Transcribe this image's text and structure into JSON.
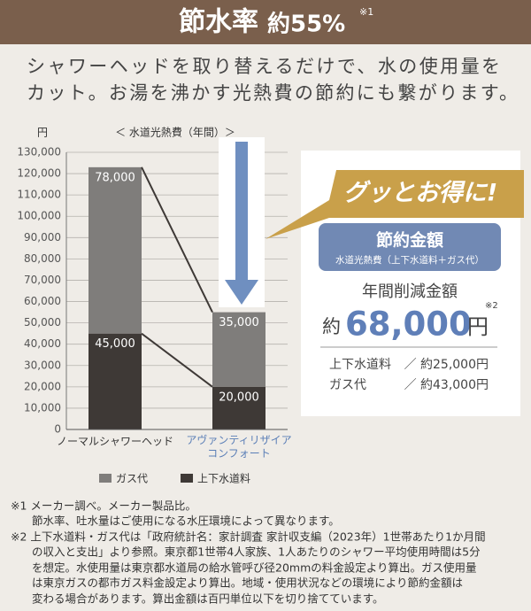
{
  "header": {
    "title": "節水率",
    "rate": "約55%",
    "note": "※1"
  },
  "lead": [
    "シャワーヘッドを取り替えるだけで、水の使用量を",
    "カット。お湯を沸かす光熱費の節約にも繋がります。"
  ],
  "chart_data": {
    "type": "bar",
    "stacked": true,
    "y_unit": "円",
    "subtitle": "＜ 水道光熱費（年間）＞",
    "categories": [
      "ノーマルシャワーヘッド",
      "アヴァンティリザイア\nコンフォート"
    ],
    "series": [
      {
        "name": "上下水道料",
        "color": "#3e3936",
        "values": [
          45000,
          20000
        ],
        "value_labels": [
          "45,000",
          "20,000"
        ]
      },
      {
        "name": "ガス代",
        "color": "#7f7d7b",
        "values": [
          78000,
          35000
        ],
        "value_labels": [
          "78,000",
          "35,000"
        ]
      }
    ],
    "ylim": [
      0,
      130000
    ],
    "yticks": [
      0,
      {
        "value": 10000,
        "label": "10,000"
      },
      {
        "value": 20000,
        "label": "20,000"
      },
      {
        "value": 30000,
        "label": "30,000"
      },
      {
        "value": 40000,
        "label": "40,000"
      },
      {
        "value": 50000,
        "label": "50,000"
      },
      {
        "value": 60000,
        "label": "60,000"
      },
      {
        "value": 70000,
        "label": "70,000"
      },
      {
        "value": 80000,
        "label": "80,000"
      },
      {
        "value": 90000,
        "label": "90,000"
      },
      {
        "value": 100000,
        "label": "100,000"
      },
      {
        "value": 110000,
        "label": "110,000"
      },
      {
        "value": 120000,
        "label": "120,000"
      },
      {
        "value": 130000,
        "label": "130,000"
      }
    ],
    "grid": true
  },
  "savings": {
    "banner": "グッとお得に!",
    "heading": "節約金額",
    "subheading": "水道光熱費（上下水道料＋ガス代）",
    "label": "年間削減金額",
    "prefix": "約",
    "amount": "68,000",
    "unit": "円",
    "note": "※2",
    "breakdown": [
      {
        "label": "上下水道料",
        "value": "／ 約25,000円"
      },
      {
        "label": "ガス代",
        "value": "／ 約43,000円"
      }
    ]
  },
  "footnotes": [
    "※1 メーカー調べ。メーカー製品比。",
    "節水率、吐水量はご使用になる水圧環境によって異なります。",
    "※2 上下水道料・ガス代は「政府統計名：家計調査 家計収支編（2023年）1世帯あたり1か月間",
    "の収入と支出」より参照。東京都1世帯4人家族、1人あたりのシャワー平均使用時間は5分",
    "を想定。水使用量は東京都水道局の給水管呼び径20mmの料金設定より算出。ガス使用量",
    "は東京ガスの都市ガス料金設定より算出。地域・使用状況などの環境により節約金額は",
    "変わる場合があります。算出金額は百円単位以下を切り捨てています。"
  ]
}
